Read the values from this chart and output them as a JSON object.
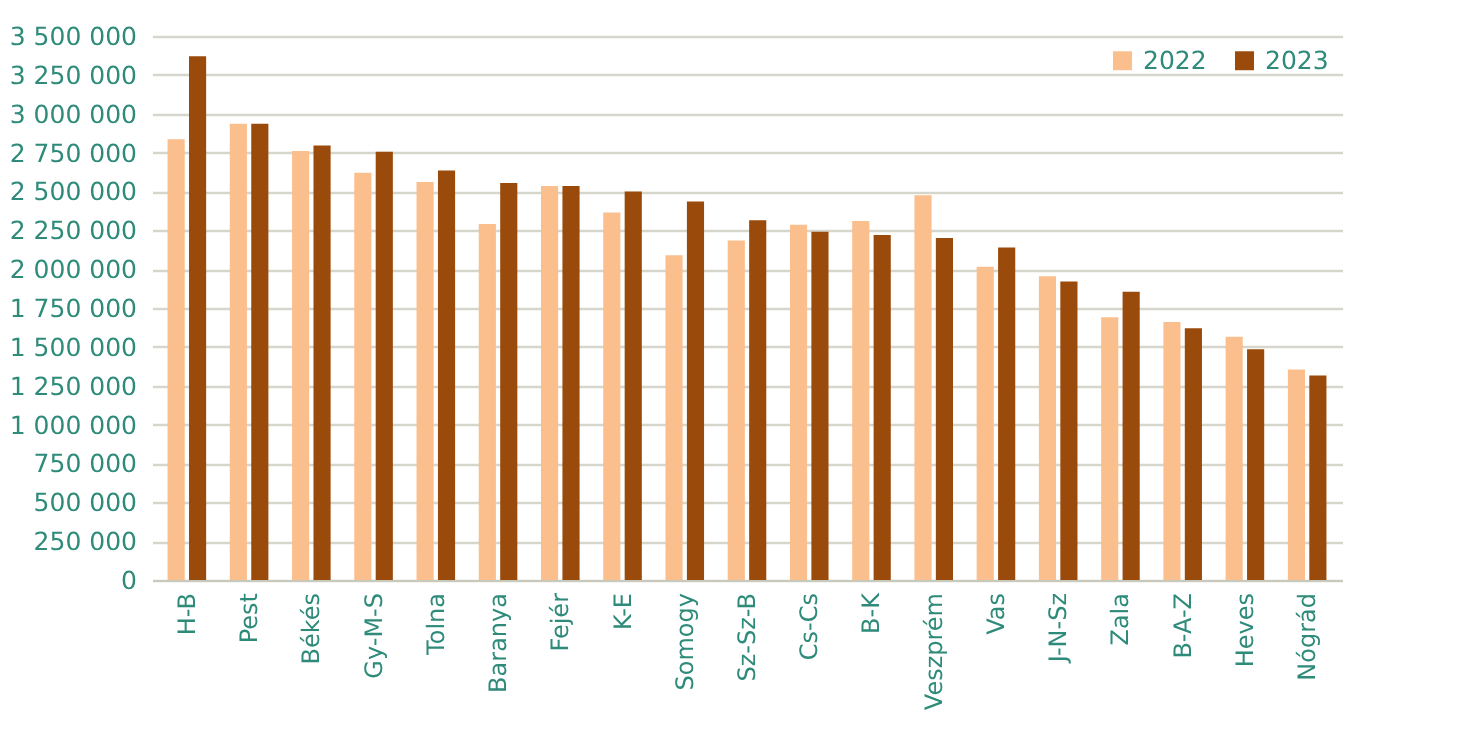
{
  "chart_data": {
    "type": "bar",
    "categories": [
      "H-B",
      "Pest",
      "Békés",
      "Gy-M-S",
      "Tolna",
      "Baranya",
      "Fejér",
      "K-E",
      "Somogy",
      "Sz-Sz-B",
      "Cs-Cs",
      "B-K",
      "Veszprém",
      "Vas",
      "J-N-Sz",
      "Zala",
      "B-A-Z",
      "Heves",
      "Nógrád"
    ],
    "series": [
      {
        "name": "2022",
        "color": "#fbbf8e",
        "values": [
          2835000,
          2935000,
          2760000,
          2620000,
          2560000,
          2290000,
          2535000,
          2365000,
          2090000,
          2185000,
          2285000,
          2310000,
          2475000,
          2015000,
          1955000,
          1690000,
          1660000,
          1565000,
          1355000
        ]
      },
      {
        "name": "2023",
        "color": "#9a4a0a",
        "values": [
          3370000,
          2935000,
          2795000,
          2755000,
          2635000,
          2555000,
          2535000,
          2500000,
          2435000,
          2315000,
          2240000,
          2220000,
          2200000,
          2140000,
          1920000,
          1855000,
          1620000,
          1485000,
          1315000
        ]
      }
    ],
    "ylim": [
      0,
      3500000
    ],
    "yticks": [
      0,
      {
        "value": 250000,
        "label": "250 000"
      },
      {
        "value": 500000,
        "label": "500 000"
      },
      {
        "value": 750000,
        "label": "750 000"
      },
      {
        "value": 1000000,
        "label": "1 000 000"
      },
      {
        "value": 1250000,
        "label": "1 250 000"
      },
      {
        "value": 1500000,
        "label": "1 500 000"
      },
      {
        "value": 1750000,
        "label": "1 750 000"
      },
      {
        "value": 2000000,
        "label": "2 000 000"
      },
      {
        "value": 2250000,
        "label": "2 250 000"
      },
      {
        "value": 2500000,
        "label": "2 500 000"
      },
      {
        "value": 2750000,
        "label": "2 750 000"
      },
      {
        "value": 3000000,
        "label": "3 000 000"
      },
      {
        "value": 3250000,
        "label": "3 250 000"
      },
      {
        "value": 3500000,
        "label": "3 500 000"
      }
    ],
    "grid": "y",
    "legend": "top right"
  }
}
